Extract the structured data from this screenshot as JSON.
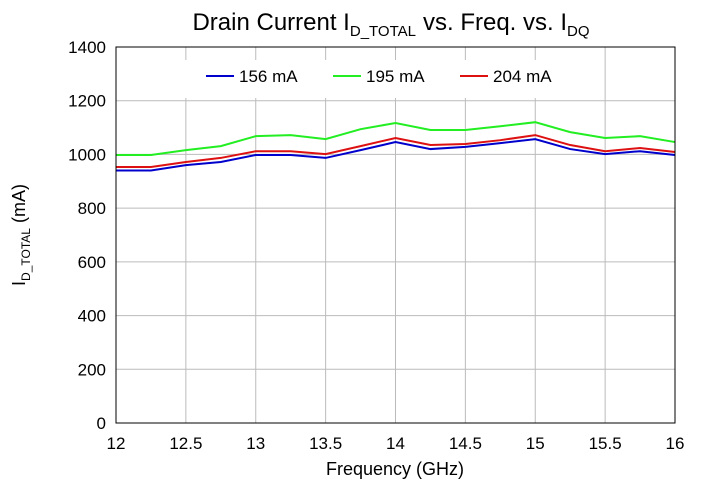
{
  "chart_data": {
    "type": "line",
    "title": [
      {
        "text": "Drain Current I",
        "sub": "D_TOTAL"
      },
      {
        "text": "vs. Freq. vs. I",
        "sub": "DQ"
      }
    ],
    "x_label": "Frequency (GHz)",
    "y_label": {
      "text": "I",
      "sub": "D_TOTAL",
      "suffix": "(mA)"
    },
    "x": [
      12,
      12.25,
      12.5,
      12.75,
      13,
      13.25,
      13.5,
      13.75,
      14,
      14.25,
      14.5,
      14.75,
      15,
      15.25,
      15.5,
      15.75,
      16
    ],
    "series": [
      {
        "name": "156 mA",
        "color": "#0000cc",
        "values": [
          940,
          940,
          960,
          972,
          998,
          998,
          987,
          1016,
          1046,
          1020,
          1028,
          1042,
          1057,
          1020,
          1001,
          1012,
          998
        ]
      },
      {
        "name": "195 mA",
        "color": "#22ee22",
        "values": [
          998,
          998,
          1016,
          1031,
          1068,
          1072,
          1057,
          1094,
          1117,
          1091,
          1091,
          1105,
          1120,
          1083,
          1061,
          1068,
          1046
        ]
      },
      {
        "name": "204 mA",
        "color": "#dd1111",
        "values": [
          953,
          953,
          972,
          987,
          1012,
          1012,
          1001,
          1031,
          1061,
          1035,
          1039,
          1053,
          1072,
          1035,
          1012,
          1024,
          1009
        ]
      }
    ],
    "xlim": [
      12,
      16
    ],
    "xticks": [
      12,
      12.5,
      13,
      13.5,
      14,
      14.5,
      15,
      15.5,
      16
    ],
    "ylim": [
      0,
      1400
    ],
    "yticks": [
      0,
      200,
      400,
      600,
      800,
      1000,
      1200,
      1400
    ],
    "grid": true,
    "legend": "top"
  }
}
